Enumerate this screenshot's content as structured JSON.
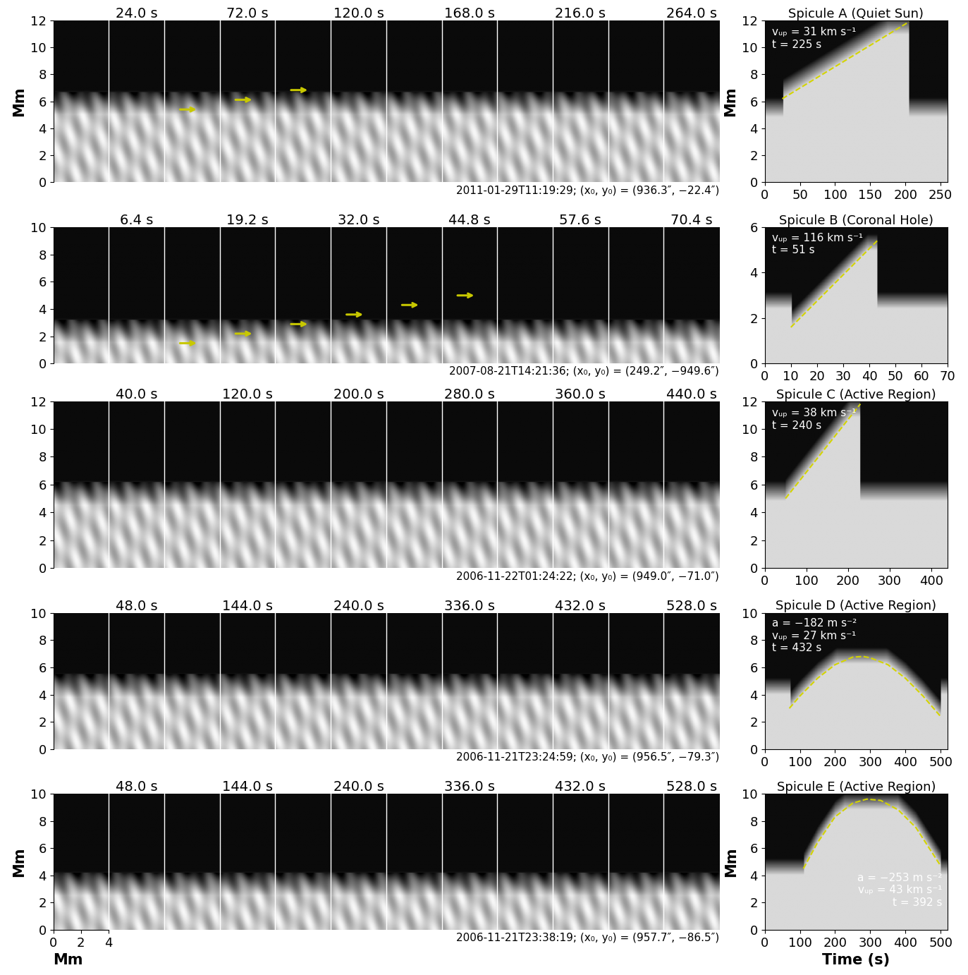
{
  "image_rows": [
    {
      "frame_labels": [
        "24.0 s",
        "72.0 s",
        "120.0 s",
        "168.0 s",
        "216.0 s",
        "264.0 s"
      ],
      "footer": "2011-01-29T11:19:29; (x₀, y₀) = (936.3″, −22.4″)",
      "xlim": [
        0,
        48
      ],
      "ylim": [
        0,
        12
      ],
      "yticks": [
        0,
        2,
        4,
        6,
        8,
        10,
        12
      ],
      "ylabel": "Mm"
    },
    {
      "frame_labels": [
        "6.4 s",
        "19.2 s",
        "32.0 s",
        "44.8 s",
        "57.6 s",
        "70.4 s"
      ],
      "footer": "2007-08-21T14:21:36; (x₀, y₀) = (249.2″, −949.6″)",
      "xlim": [
        0,
        48
      ],
      "ylim": [
        0,
        10
      ],
      "yticks": [
        0,
        2,
        4,
        6,
        8,
        10
      ]
    },
    {
      "frame_labels": [
        "40.0 s",
        "120.0 s",
        "200.0 s",
        "280.0 s",
        "360.0 s",
        "440.0 s"
      ],
      "footer": "2006-11-22T01:24:22; (x₀, y₀) = (949.0″, −71.0″)",
      "xlim": [
        0,
        48
      ],
      "ylim": [
        0,
        12
      ],
      "yticks": [
        0,
        2,
        4,
        6,
        8,
        10,
        12
      ]
    },
    {
      "frame_labels": [
        "48.0 s",
        "144.0 s",
        "240.0 s",
        "336.0 s",
        "432.0 s",
        "528.0 s"
      ],
      "footer": "2006-11-21T23:24:59; (x₀, y₀) = (956.5″, −79.3″)",
      "xlim": [
        0,
        48
      ],
      "ylim": [
        0,
        10
      ],
      "yticks": [
        0,
        2,
        4,
        6,
        8,
        10
      ]
    },
    {
      "frame_labels": [
        "48.0 s",
        "144.0 s",
        "240.0 s",
        "336.0 s",
        "432.0 s",
        "528.0 s"
      ],
      "footer": "2006-11-21T23:38:19; (x₀, y₀) = (957.7″, −86.5″)",
      "xlim": [
        0,
        48
      ],
      "ylim": [
        0,
        10
      ],
      "yticks": [
        0,
        2,
        4,
        6,
        8,
        10
      ],
      "ylabel": "Mm",
      "xticks": [
        0,
        2,
        4
      ],
      "xlabel": "Mm"
    }
  ],
  "chart_data": [
    {
      "type": "line",
      "title": "Spicule A (Quiet Sun)",
      "annotations": [
        "vᵤₚ = 31 km s⁻¹",
        "t = 225 s"
      ],
      "x": [
        25,
        205
      ],
      "y": [
        6.2,
        11.9
      ],
      "color": "#d4d400",
      "line_style": "dashed",
      "xlim": [
        0,
        260
      ],
      "xticks": [
        0,
        50,
        100,
        150,
        200,
        250
      ],
      "ylim": [
        0,
        12
      ],
      "yticks": [
        0,
        2,
        4,
        6,
        8,
        10,
        12
      ],
      "ylabel": "Mm"
    },
    {
      "type": "line",
      "title": "Spicule B (Coronal Hole)",
      "annotations": [
        "vᵤₚ = 116 km s⁻¹",
        "t = 51 s"
      ],
      "x": [
        10,
        43
      ],
      "y": [
        1.6,
        5.4
      ],
      "color": "#d4d400",
      "line_style": "dashed",
      "xlim": [
        0,
        70
      ],
      "xticks": [
        0,
        10,
        20,
        30,
        40,
        50,
        60,
        70
      ],
      "ylim": [
        0,
        6
      ],
      "yticks": [
        0,
        2,
        4,
        6
      ]
    },
    {
      "type": "line",
      "title": "Spicule C (Active Region)",
      "annotations": [
        "vᵤₚ = 38 km s⁻¹",
        "t = 240 s"
      ],
      "x": [
        50,
        230
      ],
      "y": [
        5.0,
        11.8
      ],
      "color": "#d4d400",
      "line_style": "dashed",
      "xlim": [
        0,
        440
      ],
      "xticks": [
        0,
        100,
        200,
        300,
        400
      ],
      "ylim": [
        0,
        12
      ],
      "yticks": [
        0,
        2,
        4,
        6,
        8,
        10,
        12
      ]
    },
    {
      "type": "line",
      "title": "Spicule D (Active Region)",
      "annotations": [
        "a = −182 m s⁻²",
        "vᵤₚ = 27 km s⁻¹",
        "t = 432 s"
      ],
      "x": [
        70,
        100,
        150,
        200,
        250,
        280,
        300,
        350,
        400,
        450,
        500
      ],
      "y": [
        3.0,
        3.9,
        5.2,
        6.2,
        6.75,
        6.8,
        6.7,
        6.2,
        5.2,
        3.9,
        2.4
      ],
      "color": "#d4d400",
      "line_style": "dashed",
      "xlim": [
        0,
        520
      ],
      "xticks": [
        0,
        100,
        200,
        300,
        400,
        500
      ],
      "ylim": [
        0,
        10
      ],
      "yticks": [
        0,
        2,
        4,
        6,
        8,
        10
      ]
    },
    {
      "type": "line",
      "title": "Spicule E (Active Region)",
      "annotations": [
        "a = −253 m s⁻²",
        "vᵤₚ = 43 km s⁻¹",
        "t = 392 s"
      ],
      "x": [
        110,
        150,
        200,
        250,
        290,
        330,
        380,
        430,
        480,
        500
      ],
      "y": [
        4.5,
        6.4,
        8.3,
        9.3,
        9.6,
        9.5,
        8.8,
        7.5,
        5.5,
        4.7
      ],
      "color": "#d4d400",
      "line_style": "dashed",
      "xlim": [
        0,
        520
      ],
      "xticks": [
        0,
        100,
        200,
        300,
        400,
        500
      ],
      "ylim": [
        0,
        10
      ],
      "yticks": [
        0,
        2,
        4,
        6,
        8,
        10
      ],
      "ylabel": "Mm",
      "xlabel": "Time (s)"
    }
  ]
}
